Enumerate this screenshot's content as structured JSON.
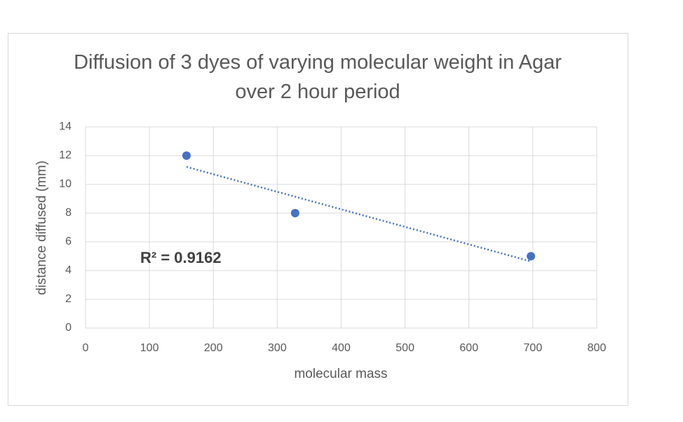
{
  "chart_data": {
    "type": "scatter",
    "title": "Diffusion of 3 dyes of varying molecular weight in Agar over 2 hour period",
    "x_label": "molecular mass",
    "y_label": "distance diffused (mm)",
    "series": [
      {
        "name": "distance diffused (mm)",
        "color": "#4472c4",
        "x": [
          158,
          328,
          697
        ],
        "values": [
          12,
          8,
          5
        ]
      }
    ],
    "trendline": {
      "type": "linear",
      "style": "dotted",
      "annotation": "R² = 0.9162"
    },
    "xlim": [
      0,
      800
    ],
    "xticks": [
      0,
      100,
      200,
      300,
      400,
      500,
      600,
      700,
      800
    ],
    "ylim": [
      0,
      14
    ],
    "yticks": [
      0,
      2,
      4,
      6,
      8,
      10,
      12,
      14
    ],
    "grid": true
  }
}
